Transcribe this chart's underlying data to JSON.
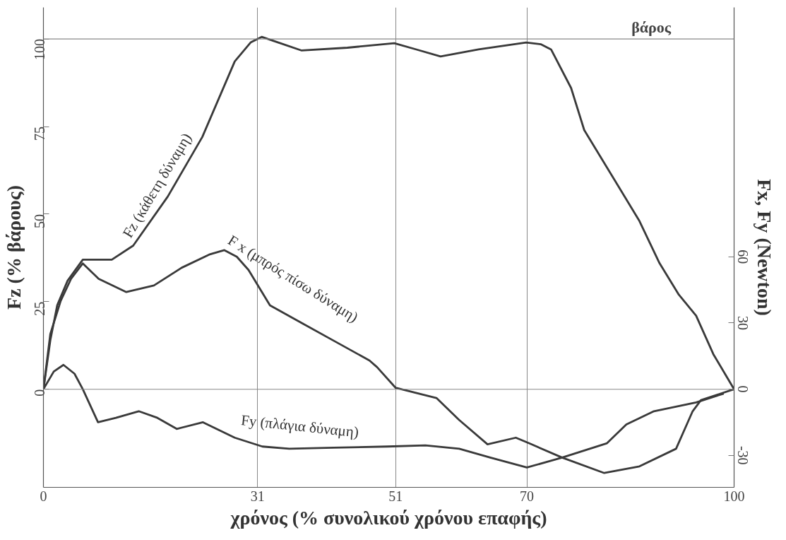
{
  "chart_data": {
    "type": "line",
    "xlabel": "χρόνος (% συνολικού χρόνου επαφής)",
    "ylabel": "Fz (% βάρους)",
    "y2label": "Fx, Fy (Newton)",
    "xlim": [
      0,
      100
    ],
    "xticks": [
      0,
      31,
      51,
      70,
      100
    ],
    "ylim": [
      -28,
      109
    ],
    "yticks": [
      0,
      25,
      50,
      75,
      100
    ],
    "y2lim": [
      -44.5,
      173
    ],
    "y2ticks": [
      -30,
      0,
      30,
      60
    ],
    "grid": "x",
    "legend": false,
    "marker": "none",
    "line_style": "solid",
    "ref_lines": [
      {
        "axis": "y",
        "value": 0
      },
      {
        "axis": "y",
        "value": 100,
        "label": "βάρος"
      }
    ],
    "series": [
      {
        "name": "Fz (κάθετη δύναμη)",
        "color": "#3a3a3a",
        "x": [
          0,
          1,
          2,
          3.5,
          5.7,
          7.5,
          9.9,
          13,
          18,
          23,
          27.7,
          30,
          31.6,
          34,
          37.4,
          44,
          50.8,
          54,
          57.5,
          63,
          69.9,
          72,
          73.5,
          76.4,
          78.3,
          82,
          86.3,
          89.2,
          92,
          94.5,
          97,
          100
        ],
        "values": [
          0,
          14,
          24,
          31,
          37,
          37,
          37,
          41,
          55,
          72,
          93.6,
          99,
          100.6,
          99,
          96.7,
          97.5,
          98.8,
          97,
          95,
          97,
          99,
          98.5,
          97,
          86,
          74,
          62,
          48,
          36,
          27,
          21,
          10,
          0
        ]
      },
      {
        "name": "F x (μπρός πίσω δύναμη)",
        "color": "#3a3a3a",
        "axis": "y2",
        "x": [
          0,
          1,
          2.5,
          4,
          5.7,
          8,
          12,
          16,
          20,
          24,
          26.2,
          28,
          29.7,
          32.8,
          37.4,
          42,
          47.2,
          48.3,
          51,
          56.9,
          60.2,
          64.3,
          68.4,
          70.3,
          75.1,
          81.2,
          86.3,
          91.6,
          94,
          95.2,
          100
        ],
        "values": [
          0,
          25,
          40,
          50,
          57,
          50,
          44,
          47,
          55,
          61,
          63,
          60,
          54,
          38,
          30,
          22,
          13,
          10,
          0.6,
          -4,
          -14,
          -25,
          -22,
          -24.5,
          -31,
          -38,
          -35,
          -27,
          -10,
          -5,
          0
        ]
      },
      {
        "name": "Fy (πλάγια δύναμη)",
        "color": "#3a3a3a",
        "axis": "y2",
        "x": [
          0,
          1.5,
          2.9,
          4.5,
          5.7,
          7.9,
          10.5,
          13.8,
          16.5,
          19.3,
          23.1,
          27.7,
          31.7,
          35.6,
          42,
          49.8,
          55.3,
          60.2,
          64.7,
          70,
          75.1,
          81.6,
          84.4,
          88.4,
          94.5,
          98.5
        ],
        "values": [
          0,
          8,
          11,
          7,
          0,
          -15,
          -13,
          -10,
          -13,
          -18,
          -15,
          -22,
          -26,
          -27,
          -26.5,
          -26,
          -25.5,
          -27,
          -31,
          -35.5,
          -31,
          -24.5,
          -16,
          -10,
          -6,
          -2
        ]
      }
    ]
  }
}
